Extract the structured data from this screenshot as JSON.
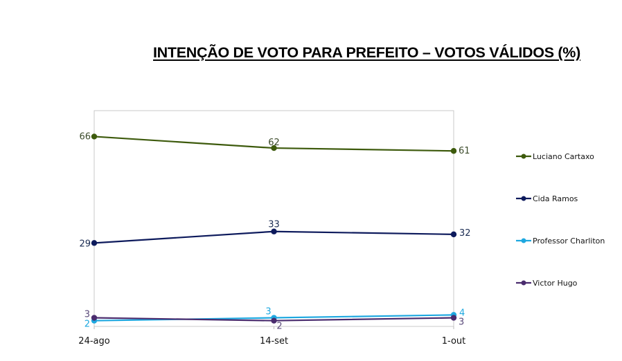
{
  "title": "INTENÇÃO DE VOTO PARA PREFEITO – VOTOS VÁLIDOS (%)",
  "chart_data": {
    "type": "line",
    "title": "INTENÇÃO DE VOTO PARA PREFEITO – VOTOS VÁLIDOS (%)",
    "xlabel": "",
    "ylabel": "",
    "categories": [
      "24-ago",
      "14-set",
      "1-out"
    ],
    "ylim": [
      0,
      75
    ],
    "grid": false,
    "legend_position": "right",
    "series": [
      {
        "name": "Luciano Cartaxo",
        "color": "#3d5a0c",
        "values": [
          66,
          62,
          61
        ]
      },
      {
        "name": "Cida Ramos",
        "color": "#0d1a5c",
        "values": [
          29,
          33,
          32
        ]
      },
      {
        "name": "Professor Charliton",
        "color": "#1ea8e0",
        "values": [
          2,
          3,
          4
        ]
      },
      {
        "name": "Victor Hugo",
        "color": "#4a2c6e",
        "values": [
          3,
          2,
          3
        ]
      }
    ]
  }
}
